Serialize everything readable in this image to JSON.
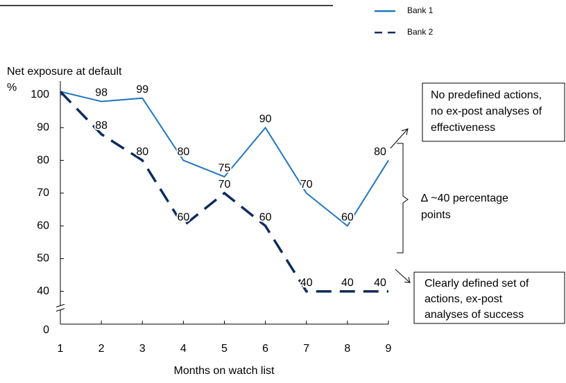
{
  "chart_data": {
    "type": "line",
    "y_axis_label": [
      "Net exposure at default",
      "%"
    ],
    "x_axis_label": "Months on watch list",
    "x": [
      1,
      2,
      3,
      4,
      5,
      6,
      7,
      8,
      9
    ],
    "xlim": [
      1,
      9
    ],
    "xticks": [
      1,
      2,
      3,
      4,
      5,
      6,
      7,
      8,
      9
    ],
    "ylim": [
      0,
      100
    ],
    "yticks": [
      0,
      40,
      50,
      60,
      70,
      80,
      90,
      100
    ],
    "y_break": true,
    "legend": "top-right",
    "series": [
      {
        "name": "Bank 1",
        "color": "#2174c4",
        "dash": false,
        "values": [
          101,
          98,
          99,
          80,
          75,
          90,
          70,
          60,
          80
        ],
        "value_labels": [
          null,
          "98",
          "99",
          "80",
          "75",
          "90",
          "70",
          "60",
          "80"
        ]
      },
      {
        "name": "Bank 2",
        "color": "#0d2b5e",
        "dash": true,
        "values": [
          101,
          88,
          80,
          60,
          70,
          60,
          40,
          40,
          40
        ],
        "value_labels": [
          null,
          "88",
          "80",
          "60",
          "70",
          "60",
          "40",
          "40",
          "40"
        ]
      }
    ],
    "annotations": {
      "top_box": [
        "No predefined actions,",
        "no ex-post analyses of",
        "effectiveness"
      ],
      "bottom_box": [
        "Clearly defined set of",
        "actions, ex-post",
        "analyses of success"
      ],
      "gap": [
        "∆ ~40 percentage",
        "points"
      ]
    }
  }
}
